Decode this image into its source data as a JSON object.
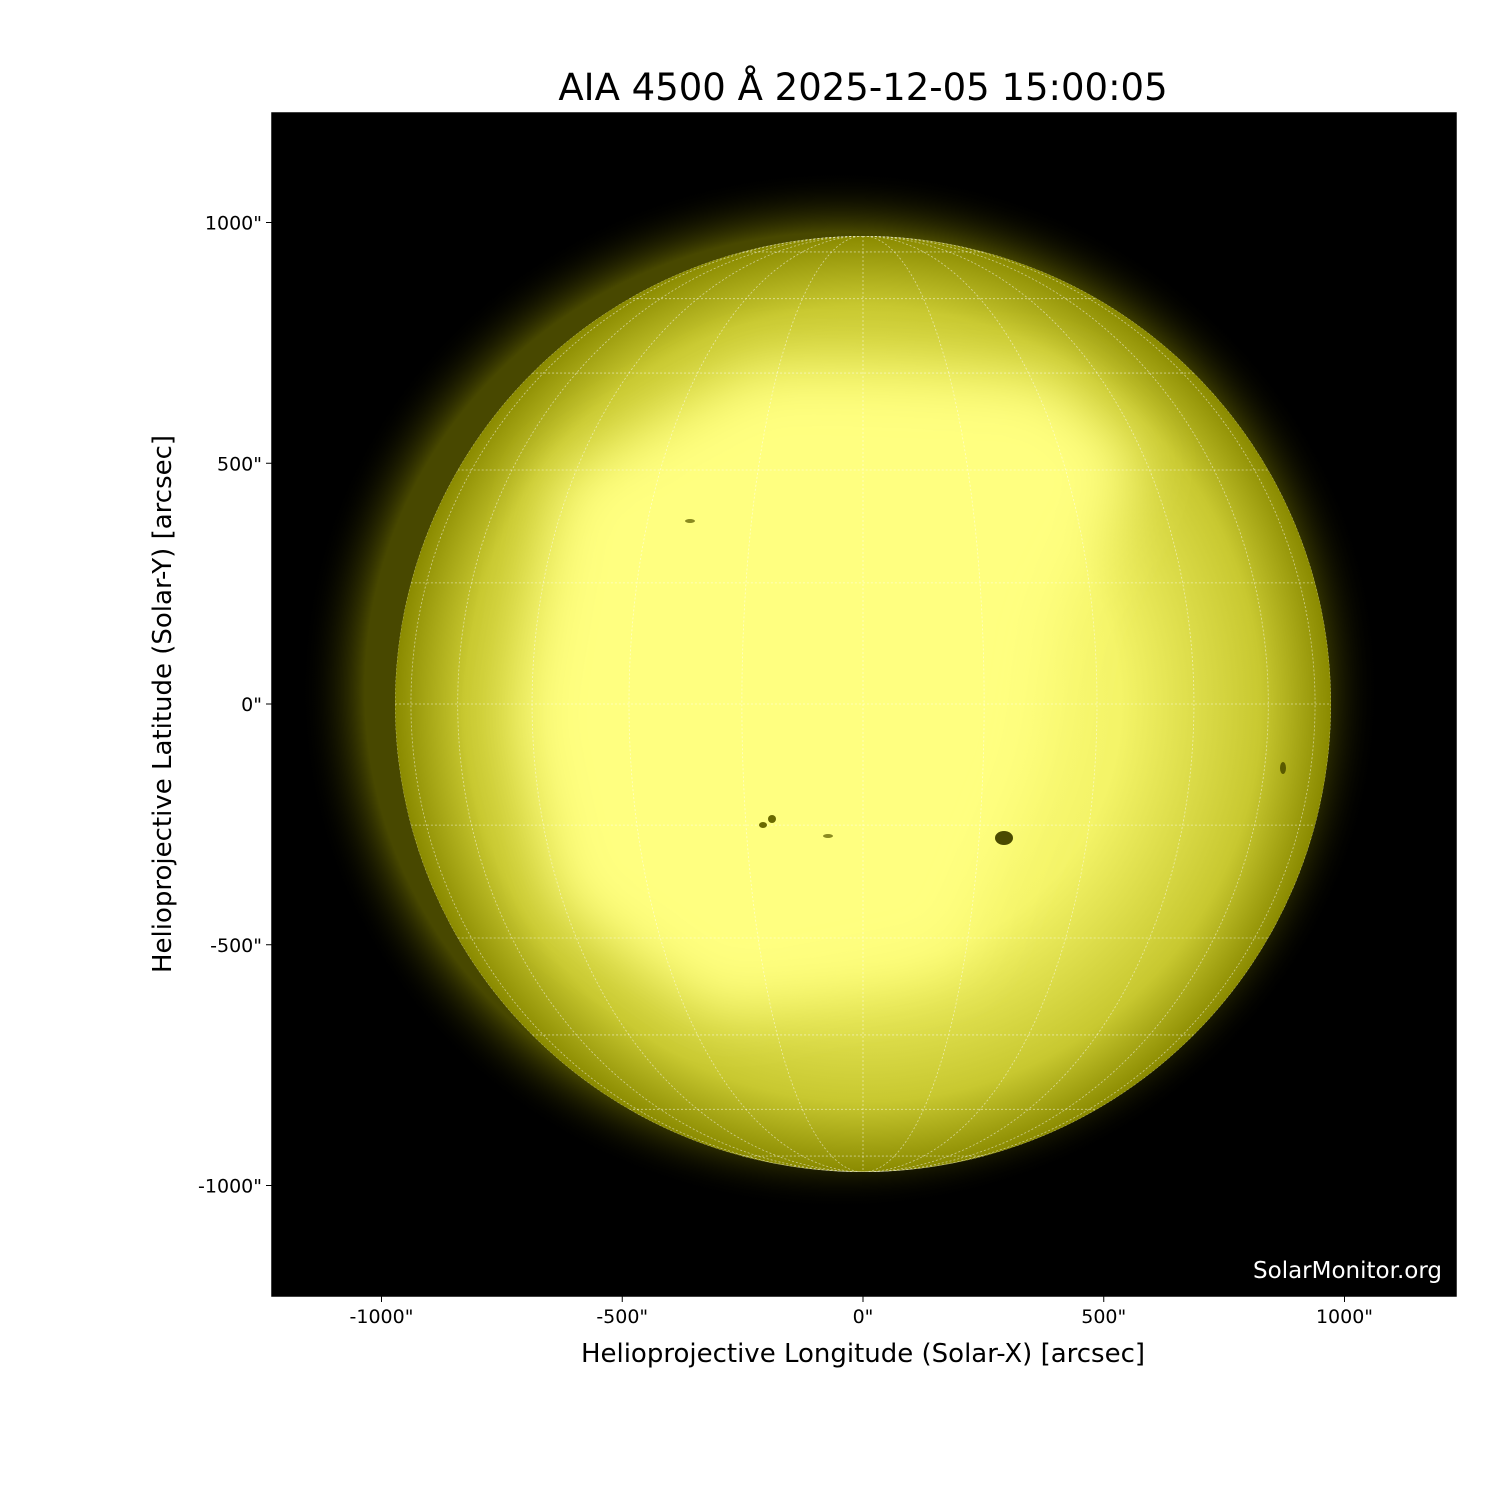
{
  "title": "AIA 4500 Å 2025-12-05 15:00:05",
  "x_axis": {
    "label": "Helioprojective Longitude (Solar-X) [arcsec]",
    "ticks": [
      "-1000\"",
      "-500\"",
      "0\"",
      "500\"",
      "1000\""
    ],
    "tick_values": [
      -1000,
      -500,
      0,
      500,
      1000
    ]
  },
  "y_axis": {
    "label": "Helioprojective Latitude (Solar-Y) [arcsec]",
    "ticks": [
      "1000\"",
      "500\"",
      "0\"",
      "-500\"",
      "-1000\""
    ],
    "tick_values": [
      1000,
      500,
      0,
      -500,
      -1000
    ]
  },
  "watermark": "SolarMonitor.org",
  "colors": {
    "sun_bright": "#ffff80",
    "sun_limb": "#8a8a00",
    "background": "#000000"
  },
  "grid": {
    "type": "heliographic",
    "spacing_deg": 15
  }
}
